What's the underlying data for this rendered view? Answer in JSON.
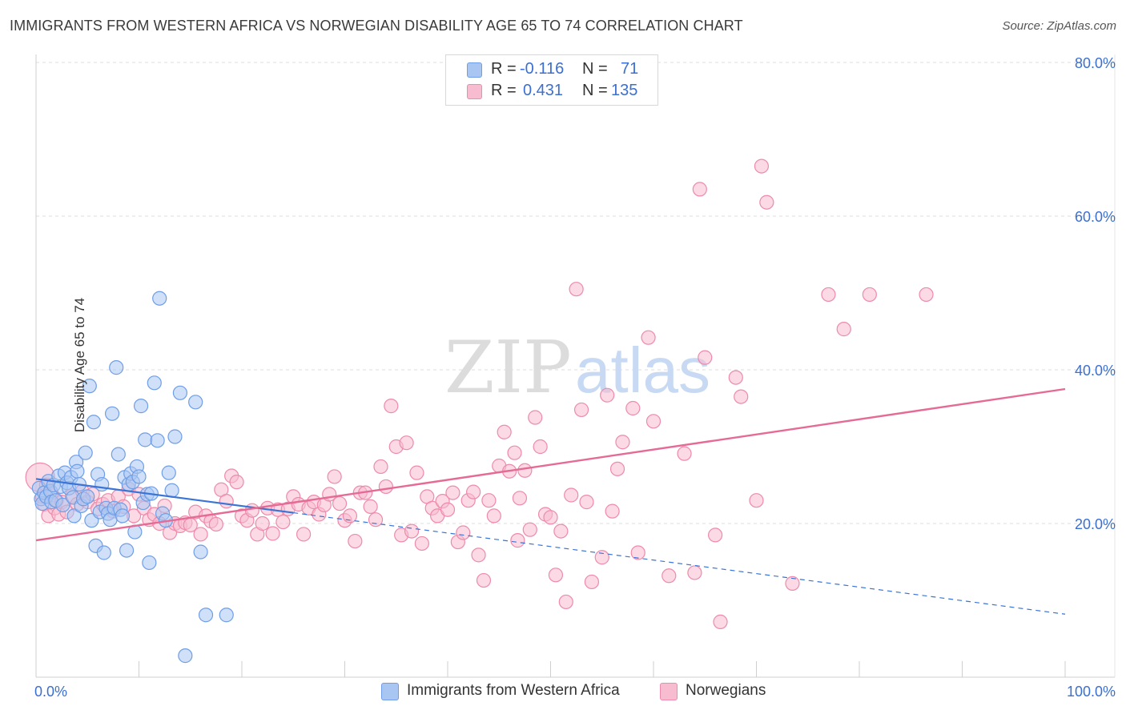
{
  "title": "IMMIGRANTS FROM WESTERN AFRICA VS NORWEGIAN DISABILITY AGE 65 TO 74 CORRELATION CHART",
  "source": "Source: ZipAtlas.com",
  "watermark": {
    "zip": "ZIP",
    "atlas": "atlas"
  },
  "legend": {
    "r_label": "R =",
    "n_label": "N =",
    "series1": {
      "r": "-0.116",
      "n": "71"
    },
    "series2": {
      "r": "0.431",
      "n": "135"
    }
  },
  "colors": {
    "blue_fill": "#a9c6f2",
    "blue_stroke": "#6f9ee6",
    "blue_line": "#3a74d6",
    "pink_fill": "#f7bcd0",
    "pink_stroke": "#ee8aaa",
    "pink_line": "#e56a95",
    "tick_label": "#3b6fd1",
    "grid": "#dcdcdc"
  },
  "chart_data": {
    "type": "scatter",
    "title": "IMMIGRANTS FROM WESTERN AFRICA VS NORWEGIAN DISABILITY AGE 65 TO 74 CORRELATION CHART",
    "xlabel": "",
    "ylabel": "Disability Age 65 to 74",
    "xlim": [
      0,
      100
    ],
    "ylim": [
      0,
      80
    ],
    "x_tick_labels": [
      "0.0%",
      "100.0%"
    ],
    "y_ticks": [
      20,
      40,
      60,
      80
    ],
    "y_tick_labels": [
      "20.0%",
      "40.0%",
      "60.0%",
      "80.0%"
    ],
    "grid": true,
    "legend_position": "top-center",
    "series": [
      {
        "name": "Immigrants from Western Africa",
        "r": -0.116,
        "n": 71,
        "trend": {
          "x0": 0,
          "y0": 25.8,
          "x1": 100,
          "y1": 8.2,
          "solid_until_x": 25
        },
        "points": [
          [
            0.3,
            24.6
          ],
          [
            0.5,
            23.2
          ],
          [
            0.6,
            22.6
          ],
          [
            0.8,
            24.0
          ],
          [
            1.0,
            23.5
          ],
          [
            1.2,
            25.5
          ],
          [
            1.4,
            24.2
          ],
          [
            1.5,
            22.8
          ],
          [
            1.7,
            25.0
          ],
          [
            1.9,
            23.0
          ],
          [
            2.2,
            26.2
          ],
          [
            2.4,
            24.8
          ],
          [
            2.6,
            22.4
          ],
          [
            2.8,
            26.6
          ],
          [
            3.0,
            25.3
          ],
          [
            3.2,
            24.6
          ],
          [
            3.4,
            26.0
          ],
          [
            3.6,
            23.4
          ],
          [
            3.7,
            21.0
          ],
          [
            3.9,
            28.0
          ],
          [
            4.0,
            26.8
          ],
          [
            4.2,
            25.1
          ],
          [
            4.4,
            22.3
          ],
          [
            4.6,
            23.2
          ],
          [
            4.8,
            29.2
          ],
          [
            5.0,
            23.5
          ],
          [
            5.2,
            37.9
          ],
          [
            5.4,
            20.4
          ],
          [
            5.6,
            33.2
          ],
          [
            5.8,
            17.1
          ],
          [
            6.0,
            26.4
          ],
          [
            6.2,
            21.5
          ],
          [
            6.4,
            25.1
          ],
          [
            6.6,
            16.2
          ],
          [
            6.8,
            22.0
          ],
          [
            7.0,
            21.3
          ],
          [
            7.2,
            20.5
          ],
          [
            7.4,
            34.3
          ],
          [
            7.6,
            22.0
          ],
          [
            7.8,
            40.3
          ],
          [
            8.0,
            29.0
          ],
          [
            8.2,
            21.8
          ],
          [
            8.4,
            21.0
          ],
          [
            8.6,
            26.0
          ],
          [
            8.8,
            16.5
          ],
          [
            9.0,
            25.1
          ],
          [
            9.2,
            26.5
          ],
          [
            9.4,
            25.4
          ],
          [
            9.6,
            18.9
          ],
          [
            9.8,
            27.4
          ],
          [
            10.0,
            26.1
          ],
          [
            10.2,
            35.3
          ],
          [
            10.4,
            22.7
          ],
          [
            10.6,
            30.9
          ],
          [
            10.8,
            23.8
          ],
          [
            11.0,
            14.9
          ],
          [
            11.2,
            23.9
          ],
          [
            11.5,
            38.3
          ],
          [
            11.8,
            30.8
          ],
          [
            12.0,
            49.3
          ],
          [
            12.3,
            21.3
          ],
          [
            12.6,
            20.4
          ],
          [
            12.9,
            26.6
          ],
          [
            13.2,
            24.3
          ],
          [
            13.5,
            31.3
          ],
          [
            14.0,
            37.0
          ],
          [
            14.5,
            2.8
          ],
          [
            15.5,
            35.8
          ],
          [
            16.0,
            16.3
          ],
          [
            16.5,
            8.1
          ],
          [
            18.5,
            8.1
          ]
        ]
      },
      {
        "name": "Norwegians",
        "r": 0.431,
        "n": 135,
        "trend": {
          "x0": 0,
          "y0": 17.8,
          "x1": 100,
          "y1": 37.5
        },
        "points": [
          [
            0.4,
            26.0
          ],
          [
            0.6,
            23.5
          ],
          [
            0.8,
            22.5
          ],
          [
            1.0,
            25.0
          ],
          [
            1.2,
            21.0
          ],
          [
            1.5,
            24.0
          ],
          [
            1.8,
            22.0
          ],
          [
            2.0,
            23.0
          ],
          [
            2.2,
            21.2
          ],
          [
            2.5,
            22.8
          ],
          [
            3.0,
            21.5
          ],
          [
            3.5,
            23.6
          ],
          [
            4.0,
            22.5
          ],
          [
            4.5,
            24.2
          ],
          [
            5.0,
            22.8
          ],
          [
            5.5,
            23.8
          ],
          [
            6.0,
            21.9
          ],
          [
            6.5,
            22.5
          ],
          [
            7.0,
            23.0
          ],
          [
            7.5,
            21.6
          ],
          [
            8.0,
            23.5
          ],
          [
            8.5,
            22.2
          ],
          [
            9.0,
            24.5
          ],
          [
            9.5,
            21.0
          ],
          [
            10.0,
            23.8
          ],
          [
            10.5,
            22.0
          ],
          [
            11.0,
            20.5
          ],
          [
            11.5,
            21.2
          ],
          [
            12.0,
            20.0
          ],
          [
            12.5,
            22.3
          ],
          [
            13.0,
            18.8
          ],
          [
            13.5,
            20.0
          ],
          [
            14.0,
            19.7
          ],
          [
            14.5,
            20.1
          ],
          [
            15.0,
            19.8
          ],
          [
            15.5,
            21.5
          ],
          [
            16.0,
            18.6
          ],
          [
            16.5,
            21.0
          ],
          [
            17.0,
            20.3
          ],
          [
            17.5,
            19.9
          ],
          [
            18.0,
            24.4
          ],
          [
            18.5,
            22.9
          ],
          [
            19.0,
            26.2
          ],
          [
            19.5,
            25.4
          ],
          [
            20.0,
            21.0
          ],
          [
            20.5,
            20.4
          ],
          [
            21.0,
            21.7
          ],
          [
            21.5,
            18.6
          ],
          [
            22.0,
            20.0
          ],
          [
            22.5,
            22.0
          ],
          [
            23.0,
            18.7
          ],
          [
            23.5,
            21.8
          ],
          [
            24.0,
            20.2
          ],
          [
            24.5,
            21.9
          ],
          [
            25.0,
            23.5
          ],
          [
            25.5,
            22.5
          ],
          [
            26.0,
            18.6
          ],
          [
            26.5,
            22.0
          ],
          [
            27.0,
            22.8
          ],
          [
            27.5,
            21.2
          ],
          [
            28.0,
            22.4
          ],
          [
            28.5,
            23.8
          ],
          [
            29.0,
            26.1
          ],
          [
            29.5,
            22.6
          ],
          [
            30.0,
            20.4
          ],
          [
            30.5,
            21.0
          ],
          [
            31.0,
            17.7
          ],
          [
            31.5,
            24.0
          ],
          [
            32.0,
            24.0
          ],
          [
            32.5,
            22.2
          ],
          [
            33.0,
            20.5
          ],
          [
            33.5,
            27.4
          ],
          [
            34.0,
            24.8
          ],
          [
            34.5,
            35.3
          ],
          [
            35.0,
            30.0
          ],
          [
            35.5,
            18.5
          ],
          [
            36.0,
            30.5
          ],
          [
            36.5,
            19.0
          ],
          [
            37.0,
            26.6
          ],
          [
            37.5,
            17.4
          ],
          [
            38.0,
            23.5
          ],
          [
            38.5,
            22.0
          ],
          [
            39.0,
            21.0
          ],
          [
            39.5,
            22.9
          ],
          [
            40.0,
            21.8
          ],
          [
            40.5,
            24.0
          ],
          [
            41.0,
            17.6
          ],
          [
            41.5,
            18.8
          ],
          [
            42.0,
            23.0
          ],
          [
            42.5,
            24.1
          ],
          [
            43.0,
            15.9
          ],
          [
            43.5,
            12.6
          ],
          [
            44.0,
            23.0
          ],
          [
            44.5,
            21.0
          ],
          [
            45.0,
            27.5
          ],
          [
            45.5,
            31.9
          ],
          [
            46.0,
            26.8
          ],
          [
            46.5,
            29.2
          ],
          [
            46.8,
            17.8
          ],
          [
            47.0,
            23.3
          ],
          [
            47.5,
            26.9
          ],
          [
            48.0,
            19.2
          ],
          [
            48.5,
            33.8
          ],
          [
            49.0,
            30.0
          ],
          [
            49.5,
            21.2
          ],
          [
            50.0,
            20.8
          ],
          [
            50.5,
            13.3
          ],
          [
            51.0,
            19.0
          ],
          [
            51.5,
            9.8
          ],
          [
            52.0,
            23.7
          ],
          [
            52.5,
            50.5
          ],
          [
            53.0,
            34.8
          ],
          [
            53.5,
            22.8
          ],
          [
            54.0,
            12.4
          ],
          [
            55.0,
            15.6
          ],
          [
            55.5,
            36.7
          ],
          [
            56.0,
            21.6
          ],
          [
            56.5,
            27.1
          ],
          [
            57.0,
            30.6
          ],
          [
            58.0,
            35.0
          ],
          [
            58.5,
            16.2
          ],
          [
            59.5,
            44.2
          ],
          [
            60.0,
            33.3
          ],
          [
            61.5,
            13.2
          ],
          [
            63.0,
            29.1
          ],
          [
            64.0,
            13.6
          ],
          [
            64.5,
            63.5
          ],
          [
            65.0,
            41.6
          ],
          [
            66.0,
            18.5
          ],
          [
            66.5,
            7.2
          ],
          [
            68.0,
            39.0
          ],
          [
            68.5,
            36.5
          ],
          [
            70.0,
            23.0
          ],
          [
            70.5,
            66.5
          ],
          [
            71.0,
            61.8
          ],
          [
            73.5,
            12.2
          ],
          [
            77.0,
            49.8
          ],
          [
            78.5,
            45.3
          ],
          [
            81.0,
            49.8
          ],
          [
            86.5,
            49.8
          ]
        ]
      }
    ]
  },
  "bottom_legend": {
    "series1": "Immigrants from Western Africa",
    "series2": "Norwegians"
  }
}
